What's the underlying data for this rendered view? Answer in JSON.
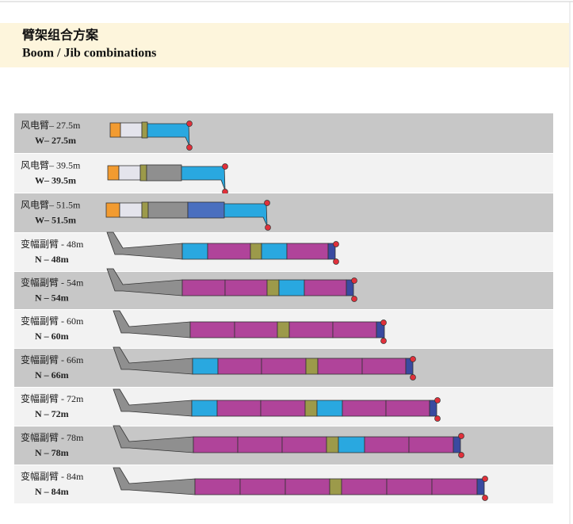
{
  "header": {
    "title": "臂架组合方案",
    "subtitle": "Boom / Jib combinations"
  },
  "rows": [
    {
      "label": "风电臂– 27.5m",
      "sublabel": "W– 27.5m"
    },
    {
      "label": "风电臂– 39.5m",
      "sublabel": "W– 39.5m"
    },
    {
      "label": "风电臂– 51.5m",
      "sublabel": "W– 51.5m"
    },
    {
      "label": "变幅副臂 - 48m",
      "sublabel": "N – 48m"
    },
    {
      "label": "变幅副臂 - 54m",
      "sublabel": "N – 54m"
    },
    {
      "label": "变幅副臂 - 60m",
      "sublabel": "N – 60m"
    },
    {
      "label": "变幅副臂 - 66m",
      "sublabel": "N – 66m"
    },
    {
      "label": "变幅副臂 - 72m",
      "sublabel": "N – 72m"
    },
    {
      "label": "变幅副臂 - 78m",
      "sublabel": "N – 78m"
    },
    {
      "label": "变幅副臂 - 84m",
      "sublabel": "N – 84m"
    }
  ]
}
